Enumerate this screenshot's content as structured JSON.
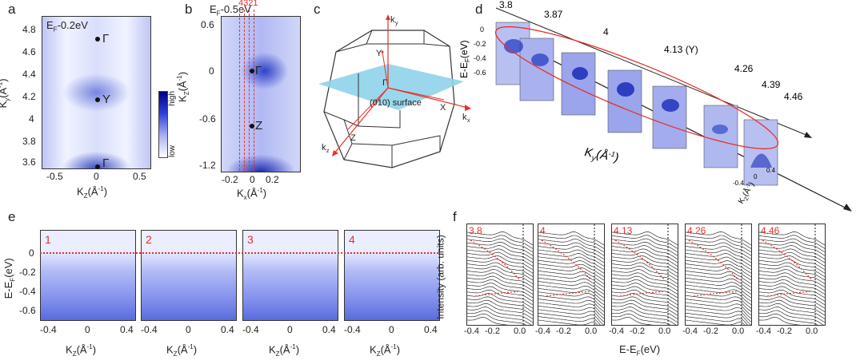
{
  "panels": {
    "a": {
      "letter": "a",
      "energy": "E",
      "energy_sub": "F",
      "energy_val": "-0.2eV",
      "xticks": [
        "-0.5",
        "0",
        "0.5"
      ],
      "yticks": [
        "4.8",
        "4.6",
        "4.4",
        "4.2",
        "4",
        "3.8",
        "3.6"
      ],
      "xlabel": "K",
      "xlabel_sub": "Z",
      "xlabel_unit": "(Å",
      "xlabel_exp": "-1",
      "xlabel_close": ")",
      "ylabel": "K",
      "ylabel_sub": "y",
      "ylabel_unit": "(Å",
      "ylabel_exp": "-1",
      "ylabel_close": ")",
      "points": [
        "Γ",
        "Y",
        "Γ"
      ],
      "colorbar_high": "high",
      "colorbar_low": "low"
    },
    "b": {
      "letter": "b",
      "energy": "E",
      "energy_sub": "F",
      "energy_val": "-0.5eV",
      "cut_labels": "4321",
      "xticks": [
        "-0.2",
        "0",
        "0.2"
      ],
      "yticks": [
        "0.6",
        "0",
        "-0.6",
        "-1.2"
      ],
      "xlabel": "K",
      "xlabel_sub": "x",
      "xlabel_unit": "(Å",
      "xlabel_exp": "-1",
      "xlabel_close": ")",
      "ylabel": "K",
      "ylabel_sub": "Z",
      "ylabel_unit": "(Å",
      "ylabel_exp": "-1",
      "ylabel_close": ")",
      "points": [
        "Γ",
        "Z"
      ]
    },
    "c": {
      "letter": "c",
      "labels": [
        "k",
        "Y",
        "Γ",
        "(010) surface",
        "X",
        "k",
        "Z",
        "k"
      ],
      "subs": [
        "y",
        "x",
        "z"
      ]
    },
    "d": {
      "letter": "d",
      "ky_values": [
        "3.8",
        "3.87",
        "4",
        "4.13 (Y)",
        "4.26",
        "4.39",
        "4.46"
      ],
      "ylabel": "E-E",
      "ylabel_sub": "F",
      "ylabel_unit": "(eV)",
      "yticks": [
        "0",
        "-0.2",
        "-0.4",
        "-0.6"
      ],
      "axis_label": "K",
      "axis_label_sub": "y",
      "axis_label_unit": "(Å",
      "axis_label_exp": "-1",
      "axis_label_close": ")",
      "kz_ticks": [
        "-0.4",
        "0",
        "0.4"
      ],
      "kz_label": "K",
      "kz_label_sub": "Z",
      "kz_label_unit": "(Å",
      "kz_label_exp": "-1",
      "kz_label_close": ")"
    },
    "e": {
      "letter": "e",
      "cuts": [
        "1",
        "2",
        "3",
        "4"
      ],
      "xticks": [
        "-0.4",
        "0",
        "0.4"
      ],
      "yticks": [
        "0",
        "-0.2",
        "-0.4",
        "-0.6"
      ],
      "ylabel": "E-E",
      "ylabel_sub": "F",
      "ylabel_unit": "(eV)",
      "xlabel": "K",
      "xlabel_sub": "Z",
      "xlabel_unit": "(Å",
      "xlabel_exp": "-1",
      "xlabel_close": ")"
    },
    "f": {
      "letter": "f",
      "cuts": [
        "3.8",
        "4",
        "4.13",
        "4.26",
        "4.46"
      ],
      "xticks": [
        "-0.4",
        "-0.2",
        "0.0"
      ],
      "ylabel": "Intensity (arb. units)",
      "xlabel": "E-E",
      "xlabel_sub": "F",
      "xlabel_unit": "(eV)"
    }
  },
  "colors": {
    "accent_red": "#e8302a",
    "blue_dark": "#1a2cb8",
    "cyan_surface": "#8fd3ea"
  }
}
